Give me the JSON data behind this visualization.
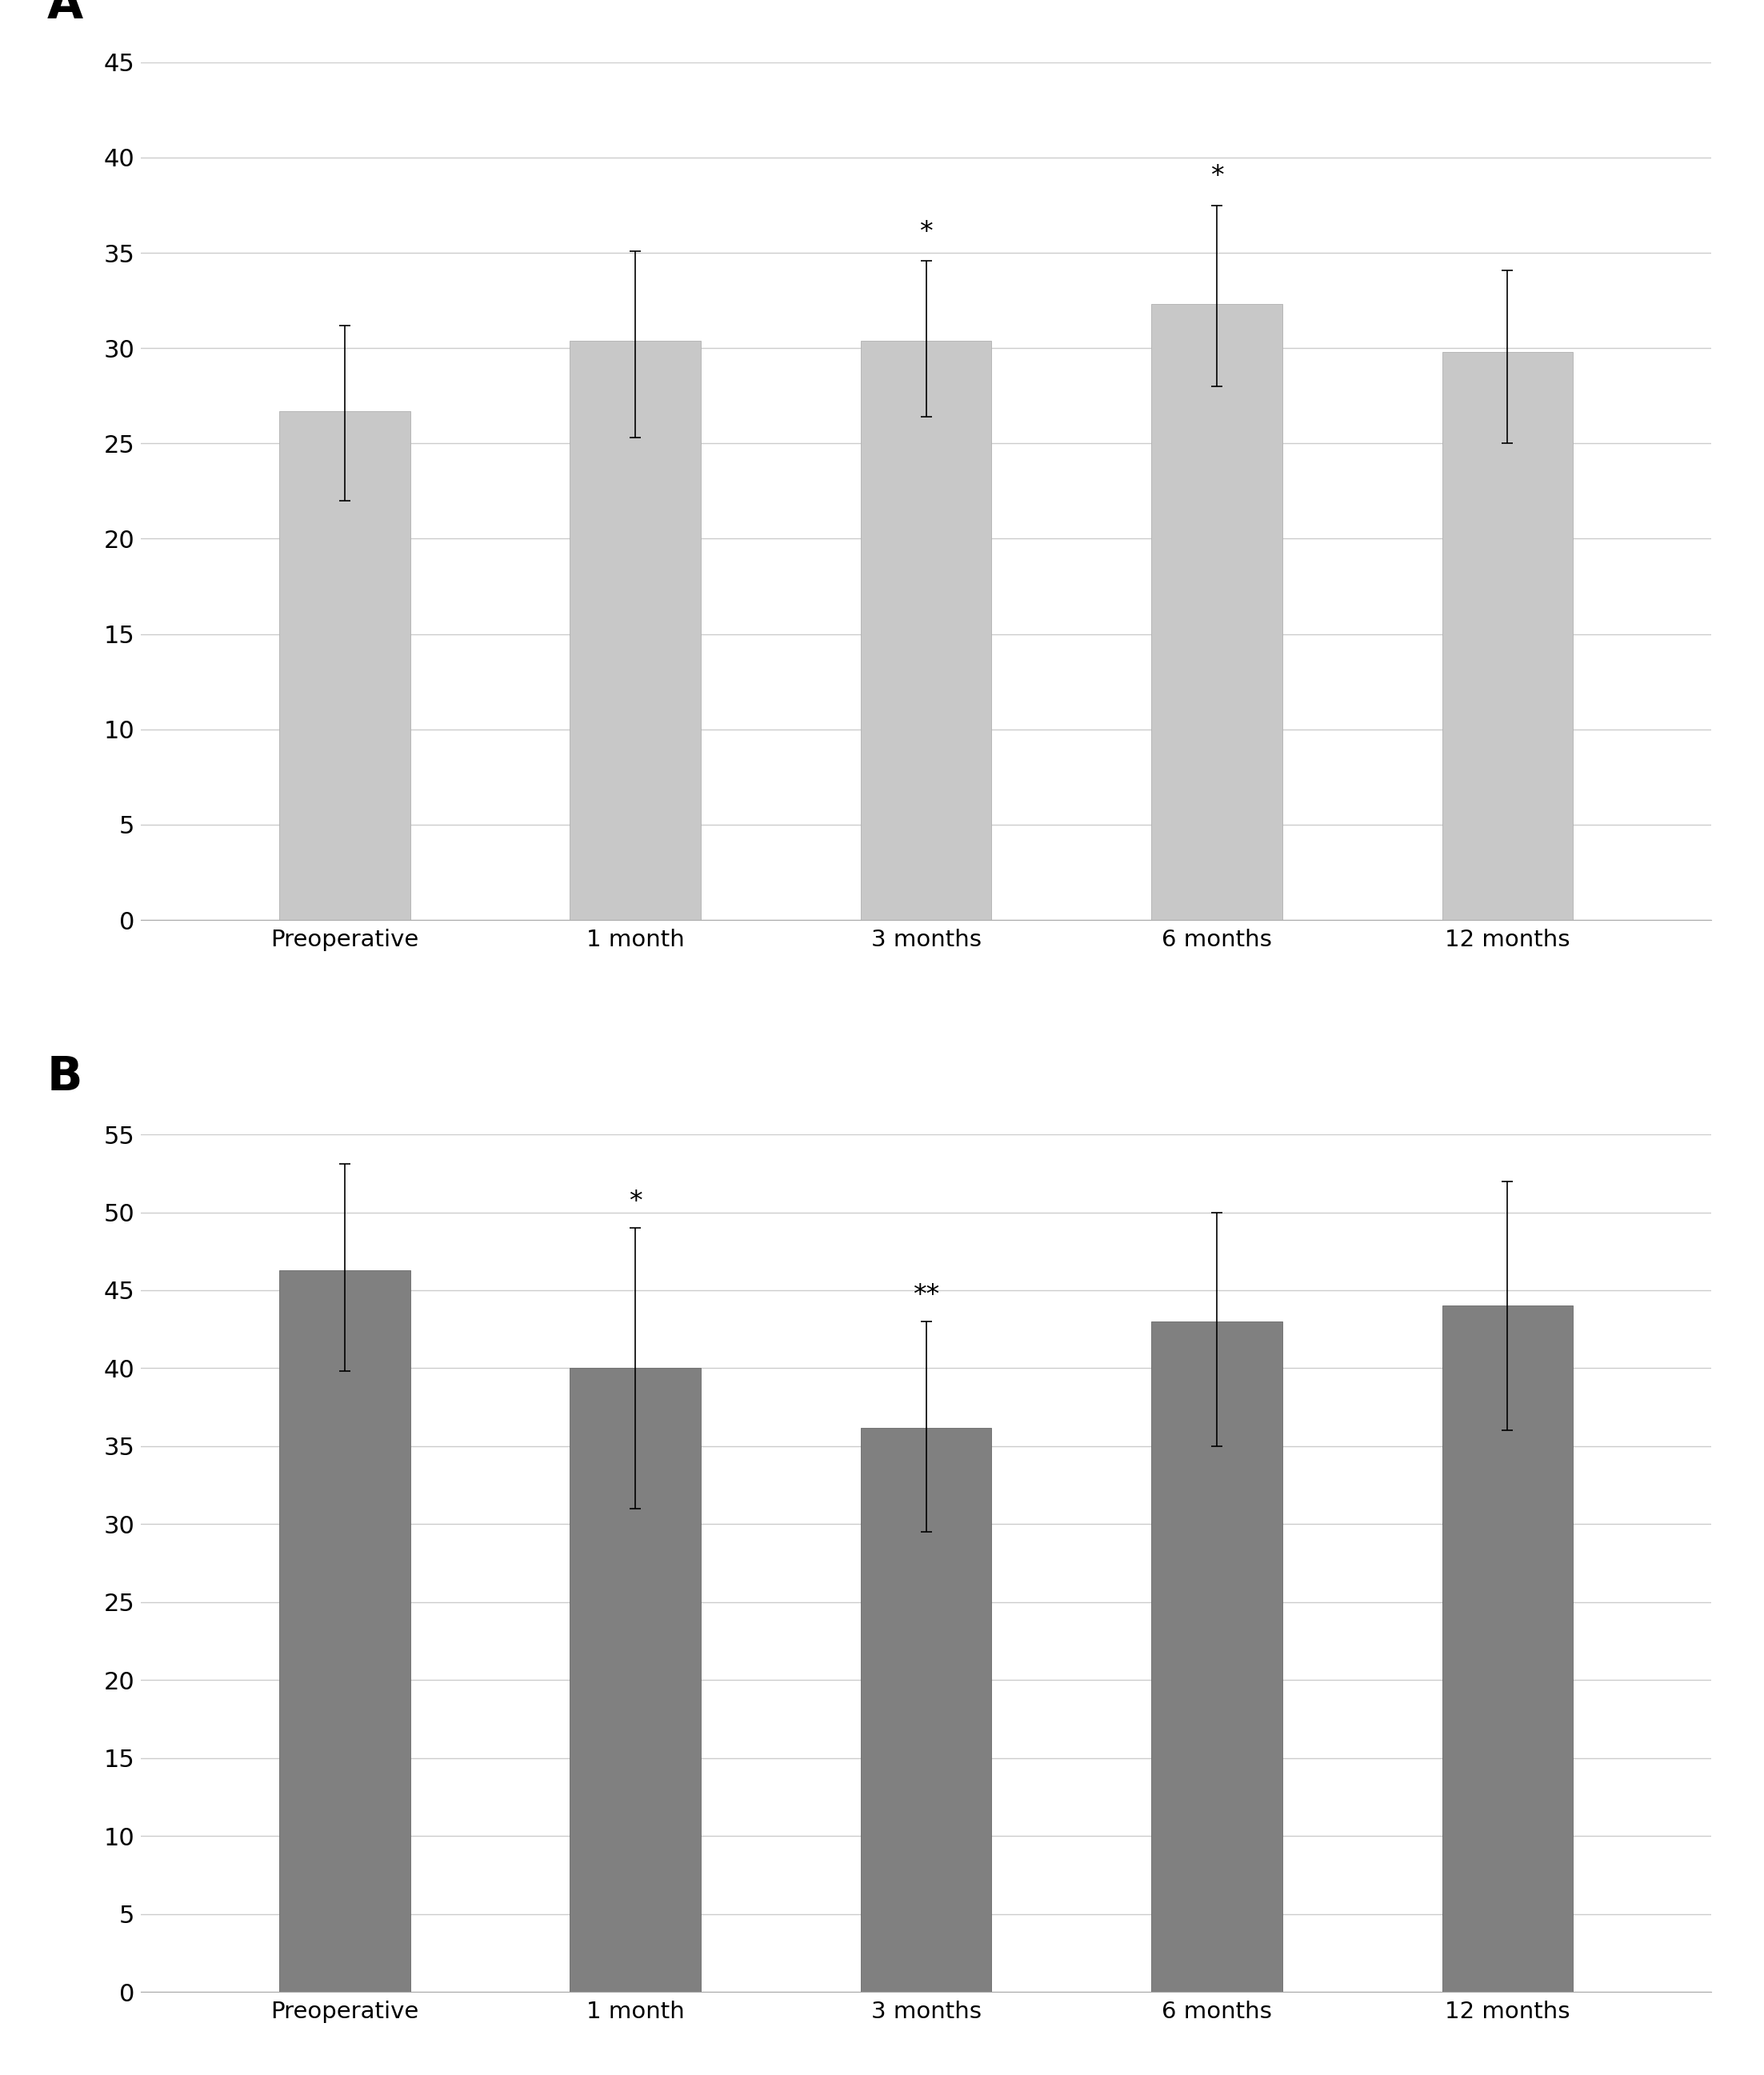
{
  "panel_A": {
    "label": "A",
    "categories": [
      "Preoperative",
      "1 month",
      "3 months",
      "6 months",
      "12 months"
    ],
    "values": [
      26.7,
      30.4,
      30.4,
      32.3,
      29.8
    ],
    "errors_upper": [
      4.5,
      4.7,
      4.2,
      5.2,
      4.3
    ],
    "errors_lower": [
      4.7,
      5.1,
      4.0,
      4.3,
      4.8
    ],
    "annotations": [
      "",
      "",
      "*",
      "*",
      ""
    ],
    "bar_color": "#c8c8c8",
    "bar_edgecolor": "#b0b0b0",
    "ylim": [
      0,
      45
    ],
    "yticks": [
      0,
      5,
      10,
      15,
      20,
      25,
      30,
      35,
      40,
      45
    ]
  },
  "panel_B": {
    "label": "B",
    "categories": [
      "Preoperative",
      "1 month",
      "3 months",
      "6 months",
      "12 months"
    ],
    "values": [
      46.3,
      40.0,
      36.2,
      43.0,
      44.0
    ],
    "errors_upper": [
      6.8,
      9.0,
      6.8,
      7.0,
      8.0
    ],
    "errors_lower": [
      6.5,
      9.0,
      6.7,
      8.0,
      8.0
    ],
    "annotations": [
      "",
      "*",
      "**",
      "",
      ""
    ],
    "bar_color": "#808080",
    "bar_edgecolor": "#686868",
    "ylim": [
      0,
      55
    ],
    "yticks": [
      0,
      5,
      10,
      15,
      20,
      25,
      30,
      35,
      40,
      45,
      50,
      55
    ]
  },
  "background_color": "#ffffff",
  "grid_color": "#cccccc",
  "bar_width": 0.45,
  "tick_fontsize": 22,
  "annotation_fontsize": 24,
  "panel_label_fontsize": 42,
  "xticklabel_fontsize": 21
}
